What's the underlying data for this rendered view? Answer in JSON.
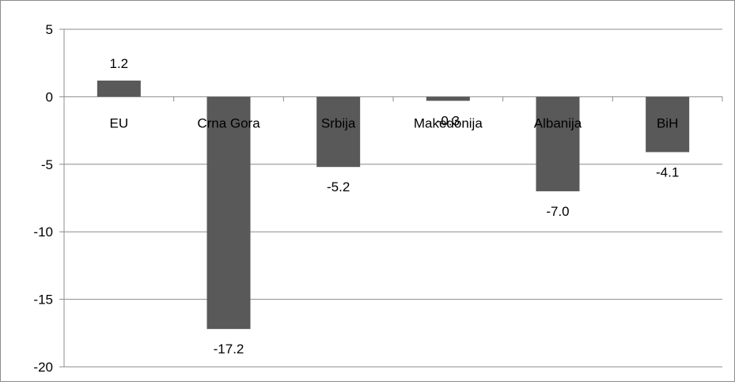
{
  "chart_data": {
    "type": "bar",
    "title": "",
    "xlabel": "",
    "ylabel": "",
    "categories": [
      "EU",
      "Crna Gora",
      "Srbija",
      "Makedonija",
      "Albanija",
      "BiH"
    ],
    "values": [
      1.2,
      -17.2,
      -5.2,
      -0.3,
      -7.0,
      -4.1
    ],
    "value_labels": [
      "1.2",
      "-17.2",
      "-5.2",
      "-0.3",
      "-7.0",
      "-4.1"
    ],
    "ylim": [
      -20,
      5
    ],
    "y_ticks": [
      5,
      0,
      -5,
      -10,
      -15,
      -20
    ],
    "y_tick_labels": [
      "5",
      "0",
      "-5",
      "-10",
      "-15",
      "-20"
    ],
    "grid": true,
    "legend": "none",
    "bar_color": "#595959",
    "grid_color": "#8c8c8c"
  }
}
